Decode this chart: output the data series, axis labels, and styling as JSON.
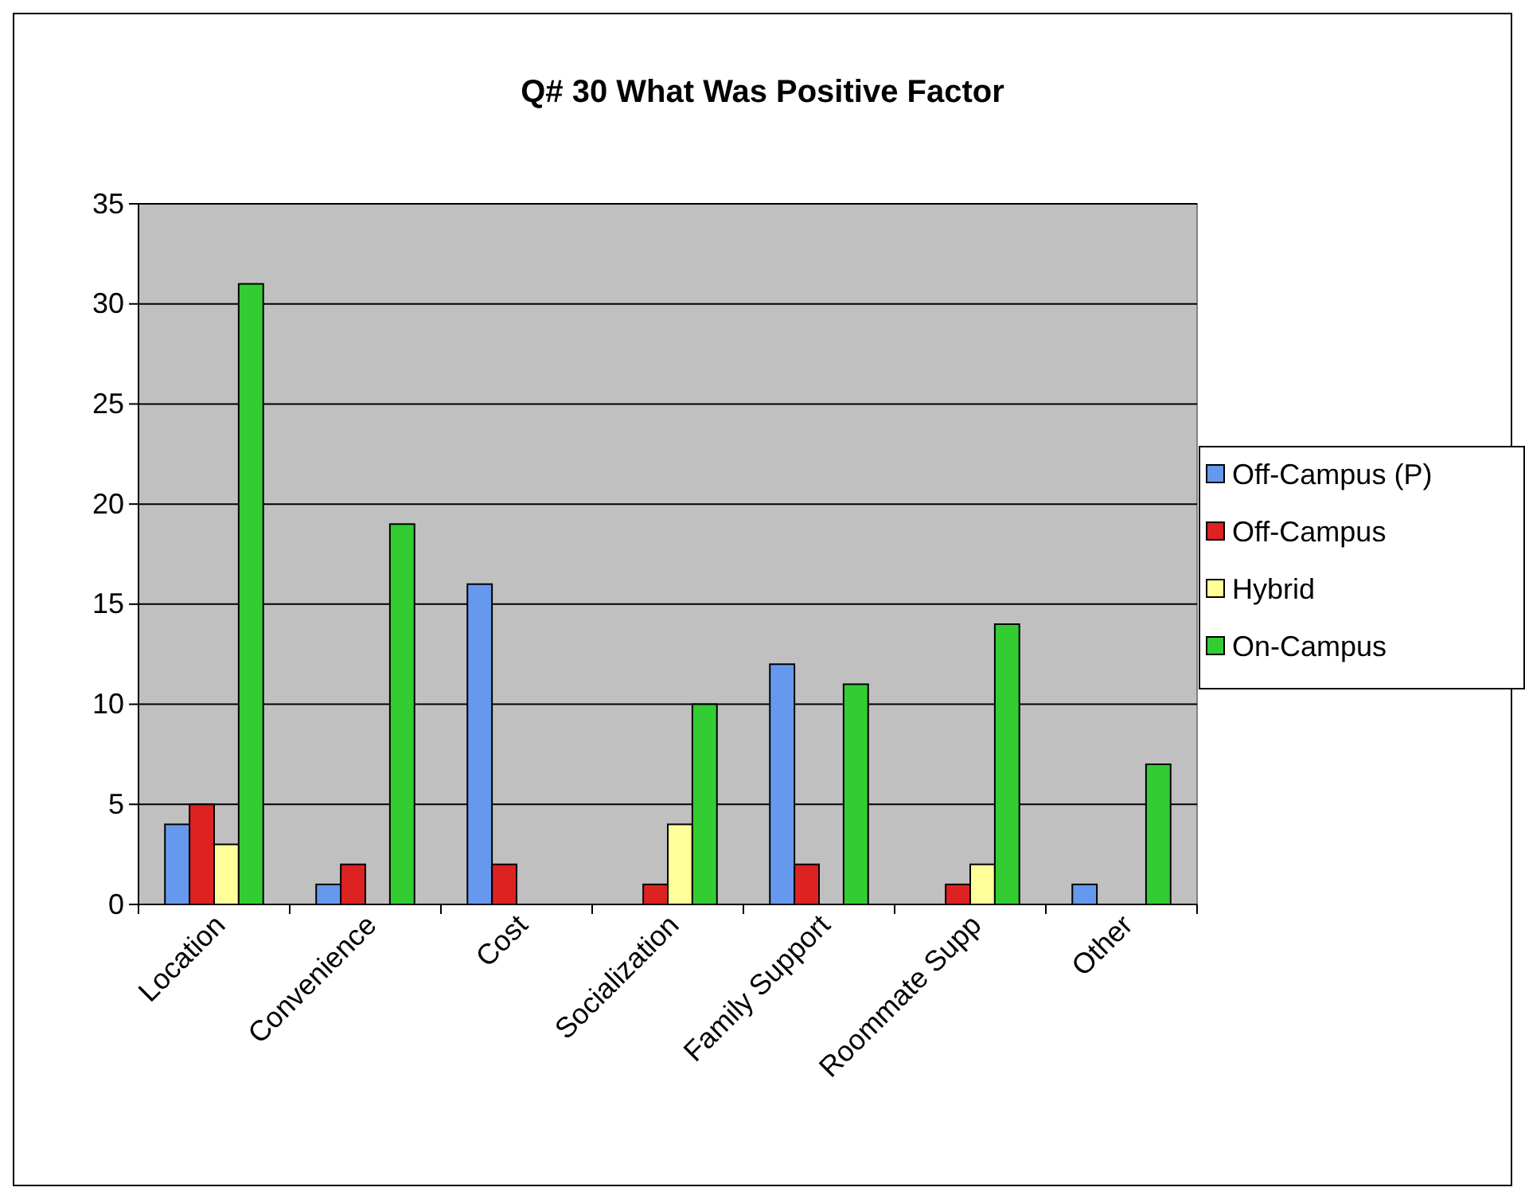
{
  "chart_data": {
    "type": "bar",
    "title": "Q# 30 What Was Positive Factor",
    "categories": [
      "Location",
      "Convenience",
      "Cost",
      "Socialization",
      "Family Support",
      "Roommate Supp",
      "Other"
    ],
    "series": [
      {
        "name": "Off-Campus (P)",
        "color": "#6699ee",
        "values": [
          4,
          1,
          16,
          0,
          12,
          0,
          1
        ]
      },
      {
        "name": "Off-Campus",
        "color": "#dd2222",
        "values": [
          5,
          2,
          2,
          1,
          2,
          1,
          0
        ]
      },
      {
        "name": "Hybrid",
        "color": "#ffff99",
        "values": [
          3,
          0,
          0,
          4,
          0,
          2,
          0
        ]
      },
      {
        "name": "On-Campus",
        "color": "#33cc33",
        "values": [
          31,
          19,
          0,
          10,
          11,
          14,
          7
        ]
      }
    ],
    "ylim": [
      0,
      35
    ],
    "yticks": [
      0,
      5,
      10,
      15,
      20,
      25,
      30,
      35
    ],
    "grid": "y",
    "legend": "right"
  }
}
